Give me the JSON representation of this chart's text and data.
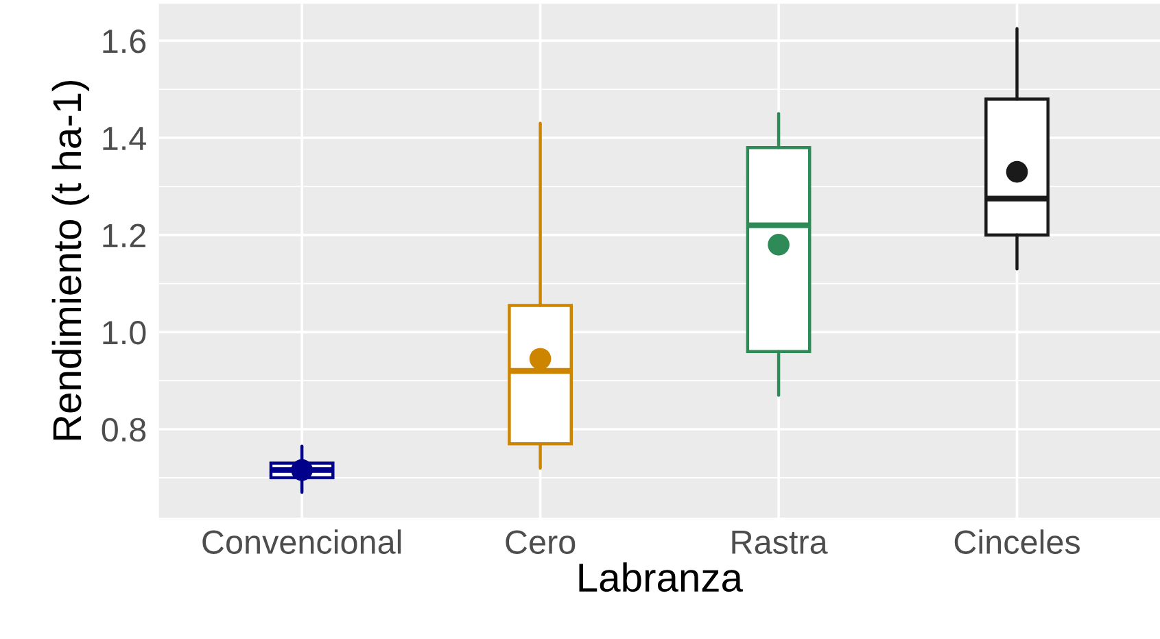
{
  "chart_data": {
    "type": "box",
    "xlabel": "Labranza",
    "ylabel": "Rendimiento (t ha-1)",
    "categories": [
      "Convencional",
      "Cero",
      "Rastra",
      "Cinceles"
    ],
    "colors": [
      "#00008b",
      "#cd8500",
      "#2e8b57",
      "#1a1a1a"
    ],
    "boxes": [
      {
        "low": 0.67,
        "q1": 0.7,
        "median": 0.716,
        "q3": 0.73,
        "high": 0.765,
        "mean": 0.716
      },
      {
        "low": 0.72,
        "q1": 0.77,
        "median": 0.92,
        "q3": 1.055,
        "high": 1.43,
        "mean": 0.945
      },
      {
        "low": 0.87,
        "q1": 0.96,
        "median": 1.22,
        "q3": 1.38,
        "high": 1.45,
        "mean": 1.18
      },
      {
        "low": 1.13,
        "q1": 1.2,
        "median": 1.275,
        "q3": 1.48,
        "high": 1.625,
        "mean": 1.33
      }
    ],
    "ylim": [
      0.618,
      1.676
    ],
    "yticks": [
      0.8,
      {
        "value": 1.0,
        "label": "1.0"
      },
      1.2,
      1.4,
      1.6
    ],
    "grid": true
  }
}
